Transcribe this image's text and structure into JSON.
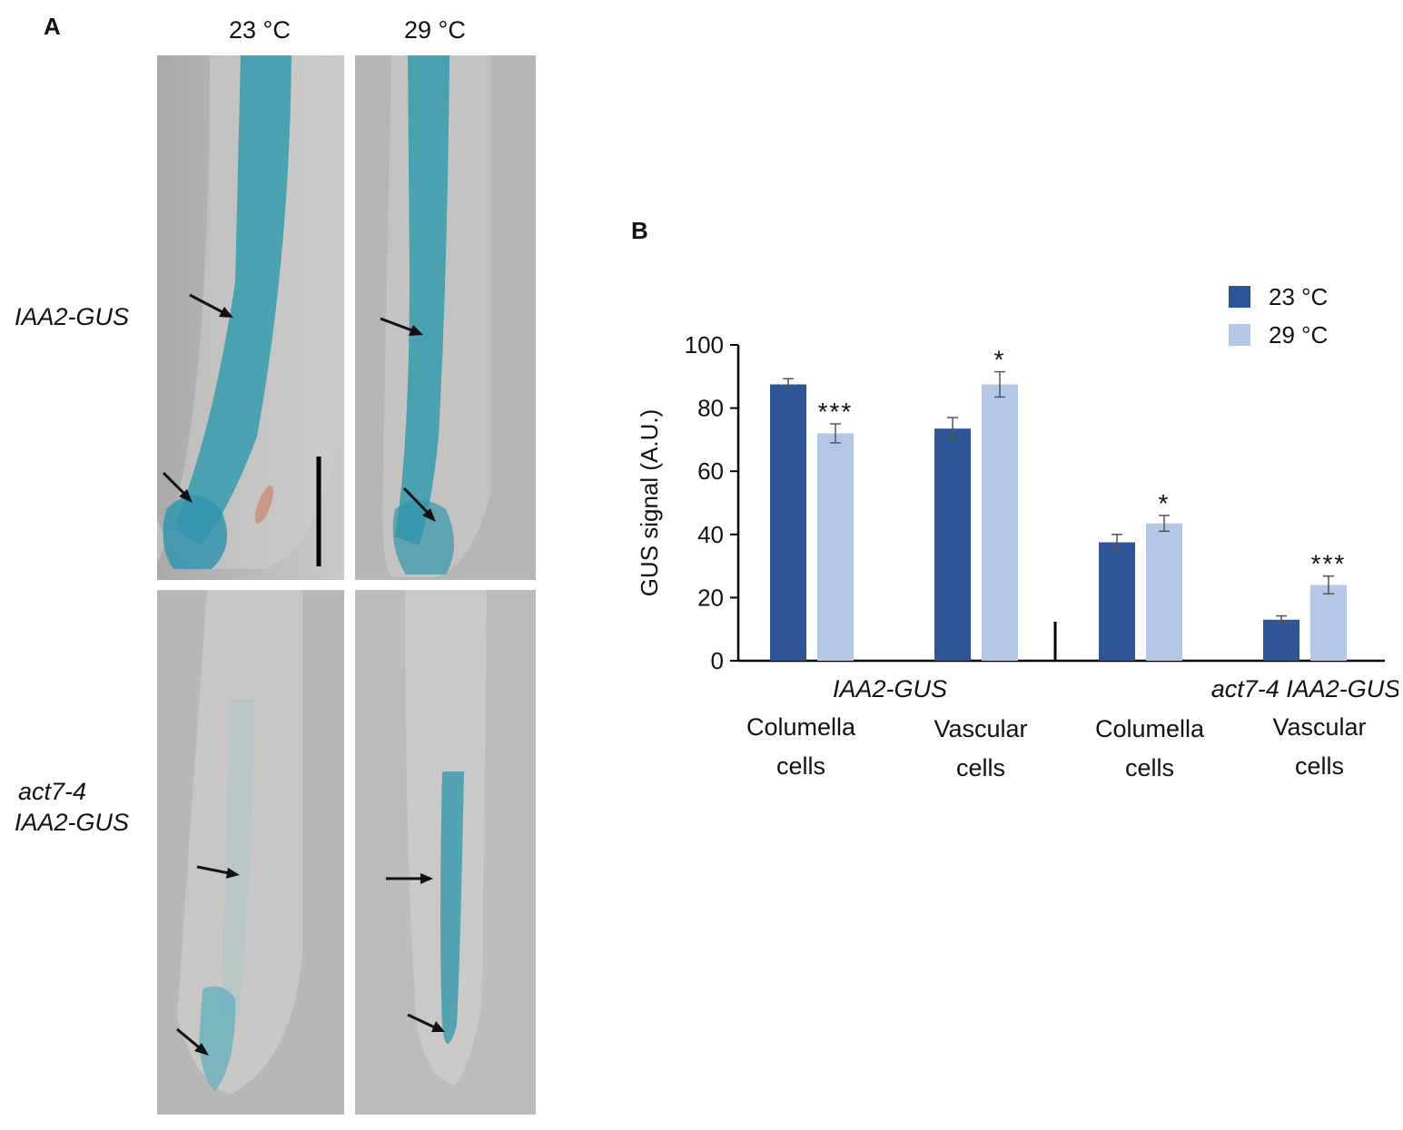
{
  "panel_a": {
    "letter": "A",
    "col_headers": [
      "23 °C",
      "29 °C"
    ],
    "row_labels": [
      [
        "IAA2-GUS"
      ],
      [
        "act7-4",
        "IAA2-GUS"
      ]
    ]
  },
  "chart_data": {
    "type": "bar",
    "panel_letter": "B",
    "ylabel": "GUS signal (A.U.)",
    "ylim": [
      0,
      100
    ],
    "yticks": [
      0,
      20,
      40,
      60,
      80,
      100
    ],
    "categories": [
      "Columella cells",
      "Vascular cells",
      "Columella cells",
      "Vascular cells"
    ],
    "category_lines": [
      [
        "Columella",
        "cells"
      ],
      [
        "Vascular",
        "cells"
      ],
      [
        "Columella",
        "cells"
      ],
      [
        "Vascular",
        "cells"
      ]
    ],
    "groups": [
      {
        "label": "IAA2-GUS",
        "categories": [
          0,
          1
        ]
      },
      {
        "label": "act7-4 IAA2-GUS",
        "categories": [
          2,
          3
        ]
      }
    ],
    "series": [
      {
        "name": "23 °C",
        "color": "#2e5597",
        "values": [
          87.5,
          73.5,
          37.5,
          13
        ],
        "errors": [
          1.8,
          3.5,
          2.5,
          1.2
        ]
      },
      {
        "name": "29 °C",
        "color": "#b4c7e7",
        "values": [
          72,
          87.5,
          43.5,
          24
        ],
        "errors": [
          3,
          4,
          2.5,
          2.8
        ]
      }
    ],
    "significance": [
      {
        "category": 0,
        "series": 1,
        "label": "***"
      },
      {
        "category": 1,
        "series": 1,
        "label": "*"
      },
      {
        "category": 2,
        "series": 1,
        "label": "*"
      },
      {
        "category": 3,
        "series": 1,
        "label": "***"
      }
    ],
    "legend_position": "top-right",
    "grid": false
  }
}
